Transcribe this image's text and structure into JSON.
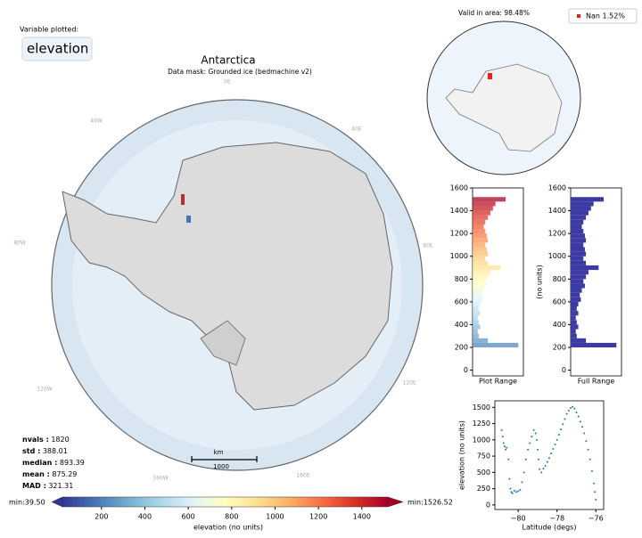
{
  "panel": {
    "variable_label": "Variable plotted:",
    "variable": "elevation"
  },
  "map": {
    "title": "Antarctica",
    "subtitle": "Data mask:  Grounded ice (bedmachine v2)",
    "longitudes": [
      "0E",
      "40E",
      "80E",
      "120E",
      "160E",
      "160W",
      "120W",
      "80W",
      "40W"
    ],
    "scale_unit": "km",
    "scale_length": "1000"
  },
  "stats": [
    {
      "label": "nvals :",
      "value": 1820
    },
    {
      "label": "std :",
      "value": 388.01
    },
    {
      "label": "median :",
      "value": 893.39
    },
    {
      "label": "mean :",
      "value": 875.29
    },
    {
      "label": "MAD :",
      "value": 321.31
    }
  ],
  "inset": {
    "title": "Valid in area: 98.48%",
    "legend": "Nan 1.52%",
    "legend_color": "#e8201c"
  },
  "colorbar": {
    "min_label": "min:39.50",
    "max_label": "min:1526.52",
    "label": "elevation (no units)",
    "lim": [
      20,
      1520
    ],
    "ticks": [
      200,
      400,
      600,
      800,
      1000,
      1200,
      1400
    ],
    "colormap": [
      "#313695",
      "#4575b4",
      "#74add1",
      "#abd9e9",
      "#e0f3f8",
      "#ffffbf",
      "#fee090",
      "#fdae61",
      "#f46d43",
      "#d73027",
      "#a50026"
    ]
  },
  "chart_data": [
    {
      "type": "histogram",
      "xlabel": "Plot Range",
      "colored": true,
      "xlim": [
        0,
        100
      ],
      "ylim": [
        -50,
        1600
      ],
      "yticks": [
        0,
        200,
        400,
        600,
        800,
        1000,
        1200,
        1400,
        1600
      ],
      "bins": [
        200,
        240,
        280,
        320,
        360,
        400,
        440,
        480,
        520,
        560,
        600,
        640,
        680,
        720,
        760,
        800,
        840,
        880,
        920,
        960,
        1000,
        1040,
        1080,
        1120,
        1160,
        1200,
        1240,
        1280,
        1320,
        1360,
        1400,
        1440,
        1480,
        1520
      ],
      "values": [
        90,
        30,
        12,
        10,
        15,
        12,
        10,
        15,
        12,
        15,
        20,
        18,
        22,
        28,
        25,
        30,
        35,
        55,
        30,
        25,
        30,
        28,
        25,
        30,
        28,
        25,
        22,
        25,
        30,
        35,
        40,
        45,
        65
      ]
    },
    {
      "type": "histogram",
      "xlabel": "Full Range",
      "ylabel": "(no units)",
      "colored": false,
      "color": "#3b3ba3",
      "xlim": [
        0,
        100
      ],
      "ylim": [
        -50,
        1600
      ],
      "yticks": [
        0,
        200,
        400,
        600,
        800,
        1000,
        1200,
        1400,
        1600
      ],
      "bins": [
        200,
        240,
        280,
        320,
        360,
        400,
        440,
        480,
        520,
        560,
        600,
        640,
        680,
        720,
        760,
        800,
        840,
        880,
        920,
        960,
        1000,
        1040,
        1080,
        1120,
        1160,
        1200,
        1240,
        1280,
        1320,
        1360,
        1400,
        1440,
        1480,
        1520
      ],
      "values": [
        90,
        30,
        12,
        10,
        15,
        12,
        10,
        15,
        12,
        15,
        20,
        18,
        22,
        28,
        25,
        30,
        35,
        55,
        30,
        25,
        30,
        28,
        25,
        30,
        28,
        25,
        22,
        25,
        30,
        35,
        40,
        45,
        65
      ]
    },
    {
      "type": "scatter",
      "xlabel": "Latitude (degs)",
      "ylabel": "elevation (no units)",
      "color": "#1f77b4",
      "xlim": [
        -81.2,
        -75.6
      ],
      "ylim": [
        -70,
        1600
      ],
      "xticks": [
        {
          "value": -80,
          "label": "−80"
        },
        {
          "value": -78,
          "label": "−78"
        },
        {
          "value": -76,
          "label": "−76"
        }
      ],
      "yticks": [
        0,
        250,
        500,
        750,
        1000,
        1250,
        1500
      ],
      "x": [
        -80.85,
        -80.8,
        -80.75,
        -80.7,
        -80.65,
        -80.6,
        -80.5,
        -80.45,
        -80.4,
        -80.35,
        -80.3,
        -80.2,
        -80.1,
        -80.0,
        -79.9,
        -79.8,
        -79.7,
        -79.6,
        -79.5,
        -79.4,
        -79.3,
        -79.2,
        -79.1,
        -79.05,
        -79.0,
        -78.95,
        -78.9,
        -78.8,
        -78.7,
        -78.6,
        -78.5,
        -78.4,
        -78.3,
        -78.2,
        -78.1,
        -78.0,
        -77.9,
        -77.8,
        -77.7,
        -77.6,
        -77.5,
        -77.4,
        -77.3,
        -77.2,
        -77.1,
        -77.0,
        -76.9,
        -76.8,
        -76.7,
        -76.6,
        -76.5,
        -76.4,
        -76.3,
        -76.2,
        -76.1,
        -76.05,
        -76.0
      ],
      "values": [
        1150,
        1050,
        950,
        900,
        850,
        880,
        700,
        400,
        250,
        200,
        180,
        220,
        200,
        210,
        230,
        350,
        500,
        700,
        850,
        950,
        1050,
        1150,
        1100,
        1000,
        850,
        700,
        550,
        500,
        560,
        600,
        660,
        720,
        790,
        860,
        930,
        1000,
        1080,
        1160,
        1240,
        1320,
        1400,
        1450,
        1490,
        1510,
        1480,
        1420,
        1360,
        1280,
        1200,
        1100,
        980,
        850,
        700,
        520,
        330,
        200,
        80
      ]
    }
  ]
}
